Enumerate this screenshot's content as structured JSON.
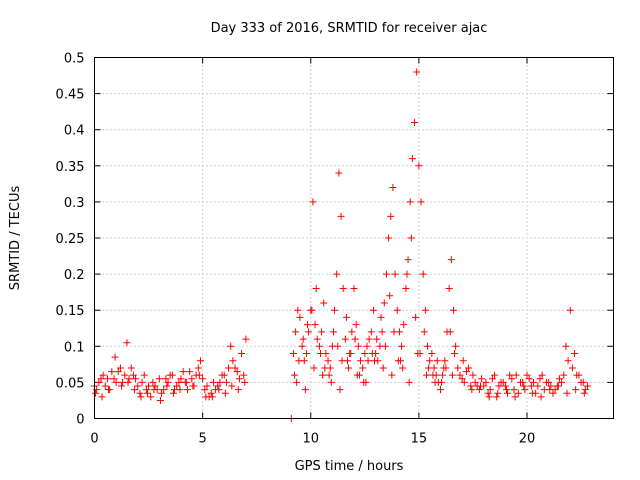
{
  "chart_data": {
    "type": "scatter",
    "title": "Day 333 of 2016, SRMTID for receiver ajac",
    "xlabel": "GPS time / hours",
    "ylabel": "SRMTID / TECUs",
    "xlim": [
      0,
      24
    ],
    "ylim": [
      0,
      0.5
    ],
    "xticks": [
      0,
      5,
      10,
      15,
      20
    ],
    "xtick_labels": [
      "0",
      "5",
      "10",
      "15",
      "20"
    ],
    "yticks": [
      0,
      0.05,
      0.1,
      0.15,
      0.2,
      0.25,
      0.3,
      0.35,
      0.4,
      0.45,
      0.5
    ],
    "ytick_labels": [
      "0",
      "0.05",
      "0.1",
      "0.15",
      "0.2",
      "0.25",
      "0.3",
      "0.35",
      "0.4",
      "0.45",
      "0.5"
    ],
    "grid": true,
    "marker": "+",
    "color": "#ff0000",
    "series": [
      {
        "name": "SRMTID",
        "x": [
          0.0,
          0.2,
          0.4,
          0.6,
          0.8,
          1.0,
          1.2,
          1.4,
          1.5,
          1.6,
          1.8,
          2.0,
          2.2,
          2.4,
          2.6,
          2.8,
          3.0,
          3.2,
          3.4,
          3.6,
          3.8,
          4.0,
          4.2,
          4.4,
          4.6,
          4.8,
          5.0,
          5.2,
          5.4,
          5.6,
          5.8,
          6.0,
          6.2,
          6.4,
          6.6,
          6.8,
          7.0,
          0.1,
          0.3,
          0.5,
          0.7,
          0.9,
          1.1,
          1.3,
          1.7,
          1.9,
          2.1,
          2.3,
          2.5,
          2.7,
          2.9,
          3.1,
          3.3,
          3.5,
          3.7,
          3.9,
          4.1,
          4.3,
          4.5,
          4.7,
          4.9,
          5.1,
          5.3,
          5.5,
          5.7,
          5.9,
          6.1,
          6.3,
          6.5,
          6.7,
          6.9,
          0.05,
          0.35,
          0.65,
          0.95,
          1.25,
          1.55,
          1.85,
          2.15,
          2.45,
          2.75,
          3.05,
          3.35,
          3.65,
          3.95,
          4.25,
          4.55,
          4.85,
          5.15,
          5.45,
          5.75,
          6.05,
          6.35,
          6.65,
          6.95,
          9.1,
          9.2,
          9.3,
          9.4,
          9.5,
          9.6,
          9.7,
          9.8,
          9.9,
          10.0,
          10.1,
          10.2,
          10.3,
          10.4,
          10.5,
          10.6,
          10.7,
          10.8,
          10.9,
          11.0,
          11.1,
          11.2,
          11.3,
          11.4,
          11.5,
          11.6,
          11.7,
          11.8,
          11.9,
          12.0,
          12.1,
          12.2,
          12.3,
          12.4,
          12.5,
          12.6,
          12.7,
          12.8,
          12.9,
          13.0,
          13.1,
          13.2,
          13.3,
          13.4,
          13.5,
          13.6,
          13.7,
          13.8,
          13.9,
          14.0,
          14.1,
          14.2,
          14.3,
          14.4,
          14.5,
          14.6,
          14.7,
          14.8,
          14.9,
          15.0,
          15.1,
          15.2,
          15.3,
          15.4,
          15.5,
          15.6,
          15.7,
          15.8,
          15.9,
          16.0,
          16.1,
          16.2,
          16.3,
          16.4,
          16.5,
          16.6,
          16.7,
          16.8,
          9.25,
          9.45,
          9.65,
          9.85,
          10.05,
          10.25,
          10.45,
          10.65,
          10.85,
          11.05,
          11.25,
          11.45,
          11.65,
          11.85,
          12.05,
          12.25,
          12.45,
          12.65,
          12.85,
          13.05,
          13.25,
          13.45,
          13.65,
          13.85,
          14.05,
          14.25,
          14.45,
          14.65,
          14.85,
          15.05,
          15.25,
          15.45,
          15.65,
          15.85,
          16.05,
          16.25,
          16.45,
          16.65,
          9.35,
          9.75,
          10.15,
          10.55,
          10.95,
          11.35,
          11.75,
          12.15,
          12.55,
          12.95,
          13.35,
          13.75,
          14.15,
          14.55,
          14.95,
          15.35,
          15.75,
          16.15,
          16.55,
          16.9,
          17.1,
          17.3,
          17.5,
          17.7,
          17.9,
          18.1,
          18.3,
          18.5,
          18.7,
          18.9,
          19.1,
          19.3,
          19.5,
          19.7,
          19.9,
          20.1,
          20.3,
          20.5,
          20.7,
          20.9,
          21.1,
          21.3,
          21.5,
          21.7,
          21.9,
          22.1,
          22.3,
          22.5,
          22.7,
          17.0,
          17.2,
          17.4,
          17.6,
          17.8,
          18.0,
          18.2,
          18.4,
          18.6,
          18.8,
          19.0,
          19.2,
          19.4,
          19.6,
          19.8,
          20.0,
          20.2,
          20.4,
          20.6,
          20.8,
          21.0,
          21.2,
          21.4,
          21.6,
          21.8,
          22.0,
          22.2,
          22.4,
          22.6,
          22.8,
          17.05,
          17.45,
          17.85,
          18.25,
          18.65,
          19.05,
          19.45,
          19.85,
          20.25,
          20.65,
          21.05,
          21.45,
          21.85,
          22.25,
          22.65
        ],
        "y": [
          0.045,
          0.05,
          0.06,
          0.055,
          0.065,
          0.05,
          0.07,
          0.06,
          0.105,
          0.055,
          0.06,
          0.045,
          0.05,
          0.04,
          0.03,
          0.045,
          0.055,
          0.04,
          0.05,
          0.06,
          0.045,
          0.055,
          0.05,
          0.065,
          0.045,
          0.07,
          0.055,
          0.045,
          0.035,
          0.04,
          0.05,
          0.06,
          0.07,
          0.08,
          0.065,
          0.09,
          0.11,
          0.04,
          0.055,
          0.045,
          0.04,
          0.055,
          0.065,
          0.05,
          0.07,
          0.055,
          0.035,
          0.06,
          0.045,
          0.05,
          0.04,
          0.035,
          0.055,
          0.06,
          0.04,
          0.05,
          0.065,
          0.04,
          0.055,
          0.06,
          0.08,
          0.04,
          0.03,
          0.05,
          0.045,
          0.06,
          0.05,
          0.1,
          0.07,
          0.055,
          0.06,
          0.035,
          0.03,
          0.04,
          0.085,
          0.045,
          0.05,
          0.04,
          0.03,
          0.035,
          0.04,
          0.025,
          0.045,
          0.035,
          0.04,
          0.05,
          0.045,
          0.06,
          0.03,
          0.03,
          0.04,
          0.035,
          0.045,
          0.04,
          0.05,
          0.0,
          0.09,
          0.12,
          0.15,
          0.14,
          0.1,
          0.08,
          0.09,
          0.12,
          0.15,
          0.3,
          0.13,
          0.11,
          0.1,
          0.12,
          0.16,
          0.09,
          0.08,
          0.07,
          0.1,
          0.15,
          0.2,
          0.34,
          0.28,
          0.18,
          0.11,
          0.08,
          0.09,
          0.12,
          0.18,
          0.13,
          0.1,
          0.08,
          0.07,
          0.09,
          0.1,
          0.11,
          0.12,
          0.15,
          0.09,
          0.08,
          0.1,
          0.12,
          0.16,
          0.2,
          0.25,
          0.28,
          0.32,
          0.2,
          0.15,
          0.12,
          0.1,
          0.13,
          0.18,
          0.22,
          0.3,
          0.36,
          0.41,
          0.48,
          0.35,
          0.3,
          0.2,
          0.15,
          0.1,
          0.08,
          0.09,
          0.07,
          0.06,
          0.05,
          0.04,
          0.06,
          0.08,
          0.12,
          0.18,
          0.22,
          0.15,
          0.1,
          0.07,
          0.06,
          0.08,
          0.11,
          0.13,
          0.15,
          0.18,
          0.09,
          0.07,
          0.06,
          0.12,
          0.1,
          0.08,
          0.14,
          0.09,
          0.11,
          0.06,
          0.05,
          0.08,
          0.09,
          0.11,
          0.14,
          0.1,
          0.17,
          0.12,
          0.08,
          0.07,
          0.2,
          0.25,
          0.14,
          0.09,
          0.12,
          0.07,
          0.06,
          0.08,
          0.05,
          0.07,
          0.12,
          0.09,
          0.05,
          0.04,
          0.07,
          0.06,
          0.05,
          0.04,
          0.07,
          0.06,
          0.05,
          0.08,
          0.07,
          0.06,
          0.08,
          0.05,
          0.09,
          0.06,
          0.05,
          0.07,
          0.06,
          0.06,
          0.05,
          0.07,
          0.06,
          0.045,
          0.055,
          0.05,
          0.04,
          0.06,
          0.045,
          0.05,
          0.035,
          0.055,
          0.06,
          0.05,
          0.04,
          0.055,
          0.05,
          0.045,
          0.06,
          0.05,
          0.045,
          0.04,
          0.055,
          0.06,
          0.08,
          0.07,
          0.06,
          0.05,
          0.04,
          0.055,
          0.065,
          0.045,
          0.05,
          0.04,
          0.045,
          0.035,
          0.055,
          0.03,
          0.05,
          0.045,
          0.06,
          0.04,
          0.035,
          0.05,
          0.06,
          0.045,
          0.035,
          0.055,
          0.04,
          0.05,
          0.035,
          0.045,
          0.05,
          0.1,
          0.15,
          0.09,
          0.06,
          0.05,
          0.045,
          0.08,
          0.04,
          0.045,
          0.03,
          0.035,
          0.04,
          0.03,
          0.045,
          0.035,
          0.03,
          0.04,
          0.045,
          0.035,
          0.04,
          0.035
        ]
      }
    ]
  }
}
